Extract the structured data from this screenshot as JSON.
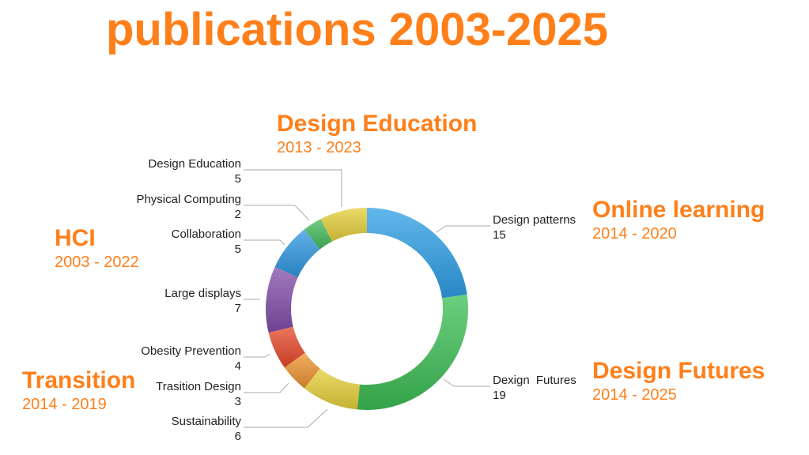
{
  "title": "publications 2003-2025",
  "groups": [
    {
      "name": "Design Education",
      "years": "2013 - 2023"
    },
    {
      "name": "Online learning",
      "years": "2014 - 2020"
    },
    {
      "name": "HCI",
      "years": "2003 - 2022"
    },
    {
      "name": "Design Futures",
      "years": "2014 - 2025"
    },
    {
      "name": "Transition",
      "years": "2014 - 2019"
    }
  ],
  "chart_data": {
    "type": "pie",
    "variant": "donut",
    "title": "publications 2003-2025",
    "start": "top, clockwise",
    "slices": [
      {
        "label": "Design patterns",
        "value": 15,
        "color": "#2f9fe6"
      },
      {
        "label": "Dexign  Futures",
        "value": 19,
        "color": "#3cbf55"
      },
      {
        "label": "Sustainability",
        "value": 6,
        "color": "#e6cf3a"
      },
      {
        "label": "Trasition Design",
        "value": 3,
        "color": "#ee9330"
      },
      {
        "label": "Obesity Prevention",
        "value": 4,
        "color": "#e6482a"
      },
      {
        "label": "Large displays",
        "value": 7,
        "color": "#824ea8"
      },
      {
        "label": "Collaboration",
        "value": 5,
        "color": "#2f98e0"
      },
      {
        "label": "Physical Computing",
        "value": 2,
        "color": "#43bb5c"
      },
      {
        "label": "Design Education",
        "value": 5,
        "color": "#e6cf3a"
      }
    ]
  }
}
